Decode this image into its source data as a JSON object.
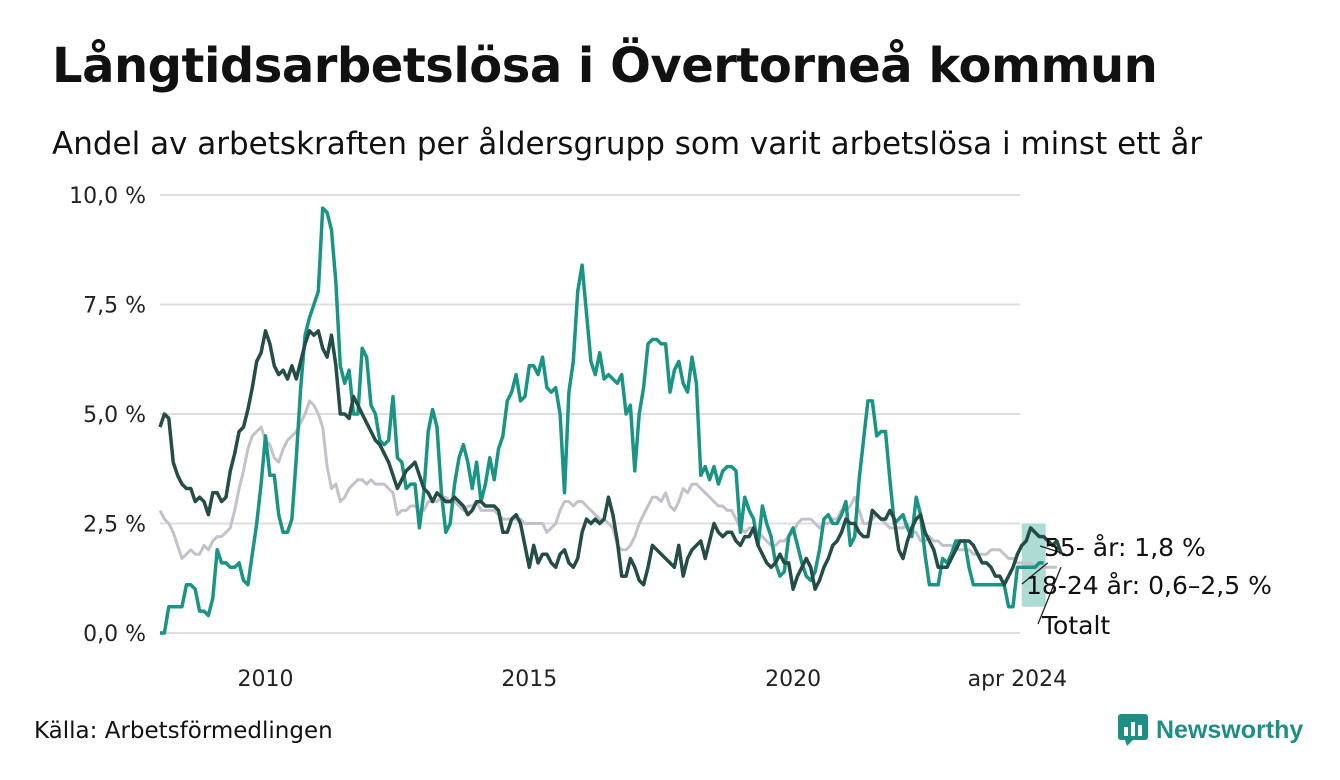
{
  "title": "Långtidsarbetslösa i Övertorneå kommun",
  "subtitle": "Andel av arbetskraften per åldersgrupp som varit arbetslösa i minst ett år",
  "source": "Källa: Arbetsförmedlingen",
  "brand": "Newsworthy",
  "colors": {
    "young": "#1a9484",
    "senior": "#254d47",
    "total": "#c3c2cc",
    "band": "#a3d8cf",
    "grid": "#dedede",
    "brand": "#1f8f85"
  },
  "chart_data": {
    "type": "line",
    "x_start": 2008.0,
    "x_step_months": 1,
    "ylim": [
      0,
      10
    ],
    "xlim": [
      2008.0,
      2024.3
    ],
    "yticks": [
      0,
      2.5,
      5,
      7.5,
      10
    ],
    "ytick_labels": [
      "0,0 %",
      "2,5 %",
      "5,0 %",
      "7,5 %",
      "10,0 %"
    ],
    "xticks": [
      2010,
      2015,
      2020,
      2024.25
    ],
    "xtick_labels": [
      "2010",
      "2015",
      "2020",
      "apr 2024"
    ],
    "grid": true,
    "series": [
      {
        "name": "18-24 år",
        "key": "young",
        "label": "18-24 år: 0,6–2,5 %",
        "band": [
          0.6,
          2.5
        ],
        "values": [
          0,
          0,
          0.6,
          0.6,
          0.6,
          0.6,
          1.1,
          1.1,
          1.0,
          0.5,
          0.5,
          0.4,
          0.8,
          1.9,
          1.6,
          1.6,
          1.5,
          1.5,
          1.6,
          1.2,
          1.1,
          1.8,
          2.5,
          3.4,
          4.5,
          3.6,
          3.6,
          2.7,
          2.3,
          2.3,
          2.6,
          4.0,
          5.6,
          6.8,
          7.2,
          7.5,
          7.8,
          9.7,
          9.6,
          9.2,
          8.0,
          6.1,
          5.7,
          6.0,
          5.0,
          5.0,
          6.5,
          6.3,
          5.2,
          5.0,
          4.4,
          4.3,
          4.4,
          5.4,
          4.0,
          3.9,
          3.3,
          3.4,
          3.4,
          2.4,
          3.2,
          4.6,
          5.1,
          4.7,
          3.2,
          2.3,
          2.5,
          3.4,
          4.0,
          4.3,
          3.9,
          3.3,
          3.9,
          3.0,
          3.4,
          4.0,
          3.5,
          4.2,
          4.5,
          5.3,
          5.5,
          5.9,
          5.3,
          5.4,
          6.1,
          6.1,
          5.9,
          6.3,
          5.6,
          5.5,
          5.6,
          5.0,
          3.2,
          5.5,
          6.2,
          7.8,
          8.4,
          7.3,
          6.2,
          5.9,
          6.4,
          5.8,
          5.9,
          5.8,
          5.7,
          5.9,
          5.0,
          5.2,
          3.7,
          5.0,
          5.6,
          6.6,
          6.7,
          6.7,
          6.6,
          6.6,
          5.5,
          6.0,
          6.2,
          5.7,
          5.5,
          6.3,
          5.7,
          3.6,
          3.8,
          3.5,
          3.8,
          3.4,
          3.7,
          3.8,
          3.8,
          3.7,
          2.3,
          3.1,
          2.8,
          2.6,
          2.0,
          2.9,
          2.5,
          2.2,
          1.6,
          1.3,
          1.4,
          2.2,
          2.4,
          2.0,
          1.6,
          1.3,
          1.2,
          1.4,
          1.9,
          2.6,
          2.7,
          2.5,
          2.5,
          2.7,
          3.0,
          2.0,
          2.2,
          3.5,
          4.4,
          5.3,
          5.3,
          4.5,
          4.6,
          4.6,
          3.5,
          2.5,
          2.6,
          2.7,
          2.4,
          2.2,
          3.1,
          2.7,
          1.8,
          1.1,
          1.1,
          1.1,
          1.7,
          1.6,
          1.8,
          2.1,
          2.1,
          2.1,
          1.5,
          1.1,
          1.1,
          1.1,
          1.1,
          1.1,
          1.1,
          1.1,
          1.1,
          0.6,
          0.6,
          1.5,
          1.5,
          1.5,
          1.5,
          1.5,
          1.6,
          1.6
        ]
      },
      {
        "name": "55- år",
        "key": "senior",
        "label": "55- år: 1,8 %",
        "values": [
          4.7,
          5.0,
          4.9,
          3.9,
          3.6,
          3.4,
          3.3,
          3.3,
          3.0,
          3.1,
          3.0,
          2.7,
          3.2,
          3.2,
          3.0,
          3.1,
          3.7,
          4.1,
          4.6,
          4.7,
          5.1,
          5.6,
          6.2,
          6.4,
          6.9,
          6.6,
          6.1,
          5.9,
          6.0,
          5.8,
          6.1,
          5.8,
          6.2,
          6.6,
          6.9,
          6.8,
          6.9,
          6.5,
          6.3,
          6.8,
          6.1,
          5.0,
          5.0,
          4.9,
          5.4,
          5.2,
          5.0,
          4.8,
          4.6,
          4.4,
          4.3,
          4.1,
          3.9,
          3.6,
          3.3,
          3.5,
          3.7,
          3.8,
          3.9,
          3.6,
          3.3,
          3.2,
          3.0,
          3.2,
          3.1,
          3.0,
          3.0,
          3.1,
          3.0,
          2.9,
          2.7,
          2.8,
          3.0,
          3.0,
          2.9,
          2.9,
          2.9,
          2.8,
          2.3,
          2.3,
          2.6,
          2.7,
          2.5,
          2.0,
          1.5,
          2.0,
          1.6,
          1.8,
          1.8,
          1.6,
          1.5,
          1.8,
          1.9,
          1.6,
          1.5,
          1.7,
          2.3,
          2.6,
          2.5,
          2.6,
          2.5,
          2.6,
          3.1,
          2.7,
          2.1,
          1.3,
          1.3,
          1.7,
          1.5,
          1.2,
          1.1,
          1.5,
          2.0,
          1.9,
          1.8,
          1.7,
          1.6,
          1.5,
          2.0,
          1.3,
          1.7,
          1.9,
          2.0,
          2.1,
          1.7,
          2.1,
          2.5,
          2.3,
          2.2,
          2.3,
          2.3,
          2.1,
          2.0,
          2.2,
          2.2,
          2.4,
          2.0,
          1.8,
          1.6,
          1.5,
          1.6,
          1.8,
          1.6,
          1.6,
          1.0,
          1.3,
          1.5,
          1.7,
          1.5,
          1.0,
          1.2,
          1.5,
          1.7,
          2.0,
          2.1,
          2.3,
          2.6,
          2.5,
          2.5,
          2.3,
          2.2,
          2.2,
          2.8,
          2.7,
          2.6,
          2.6,
          2.8,
          2.6,
          1.9,
          1.7,
          2.1,
          2.4,
          2.6,
          2.7,
          2.3,
          2.1,
          1.9,
          1.5,
          1.5,
          1.5,
          1.7,
          1.9,
          2.1,
          2.1,
          2.1,
          2.0,
          1.8,
          1.6,
          1.6,
          1.5,
          1.3,
          1.3,
          1.1,
          1.3,
          1.5,
          1.8,
          2.0,
          2.1,
          2.4,
          2.3,
          2.2,
          2.2,
          2.1,
          2.0,
          2.1,
          1.8
        ]
      },
      {
        "name": "Totalt",
        "key": "total",
        "label": "Totalt",
        "values": [
          2.8,
          2.6,
          2.5,
          2.3,
          2.0,
          1.7,
          1.8,
          1.9,
          1.8,
          1.8,
          2.0,
          1.9,
          2.1,
          2.2,
          2.2,
          2.3,
          2.4,
          2.8,
          3.3,
          3.7,
          4.2,
          4.5,
          4.6,
          4.7,
          4.4,
          4.3,
          4.0,
          3.9,
          4.2,
          4.4,
          4.5,
          4.6,
          4.8,
          5.0,
          5.3,
          5.2,
          5.0,
          4.7,
          3.8,
          3.3,
          3.4,
          3.0,
          3.1,
          3.3,
          3.4,
          3.5,
          3.5,
          3.4,
          3.5,
          3.4,
          3.4,
          3.4,
          3.3,
          3.2,
          2.7,
          2.8,
          2.8,
          2.9,
          2.9,
          2.8,
          2.8,
          3.0,
          3.0,
          3.0,
          3.1,
          3.1,
          3.0,
          3.0,
          2.9,
          2.8,
          2.9,
          2.9,
          3.0,
          2.8,
          2.8,
          2.8,
          2.8,
          2.7,
          2.6,
          2.6,
          2.6,
          2.6,
          2.6,
          2.5,
          2.5,
          2.5,
          2.5,
          2.5,
          2.3,
          2.4,
          2.5,
          2.8,
          3.0,
          3.0,
          2.9,
          3.0,
          3.0,
          2.9,
          2.8,
          2.7,
          2.6,
          2.6,
          2.5,
          2.4,
          2.0,
          1.9,
          1.9,
          2.0,
          2.2,
          2.5,
          2.7,
          2.9,
          3.1,
          3.1,
          3.0,
          3.2,
          2.9,
          2.8,
          3.0,
          3.3,
          3.2,
          3.4,
          3.4,
          3.3,
          3.2,
          3.1,
          3.0,
          2.9,
          2.9,
          2.8,
          2.8,
          2.6,
          2.4,
          2.3,
          2.4,
          2.4,
          2.3,
          2.2,
          2.1,
          2.0,
          2.0,
          2.1,
          2.1,
          2.2,
          2.3,
          2.5,
          2.6,
          2.6,
          2.6,
          2.5,
          2.4,
          2.5,
          2.5,
          2.6,
          2.6,
          2.8,
          2.8,
          2.9,
          3.1,
          2.8,
          2.5,
          2.5,
          2.6,
          2.7,
          2.6,
          2.5,
          2.4,
          2.4,
          2.4,
          2.4,
          2.5,
          2.3,
          2.3,
          2.1,
          2.1,
          2.2,
          2.1,
          2.1,
          2.0,
          2.0,
          2.0,
          1.9,
          1.9,
          1.9,
          1.9,
          1.8,
          1.8,
          1.8,
          1.8,
          1.9,
          1.9,
          1.9,
          1.8,
          1.7,
          1.7,
          1.6,
          1.6,
          1.6,
          1.6,
          1.5,
          1.5,
          1.5,
          1.5,
          1.5,
          1.5
        ]
      }
    ]
  }
}
